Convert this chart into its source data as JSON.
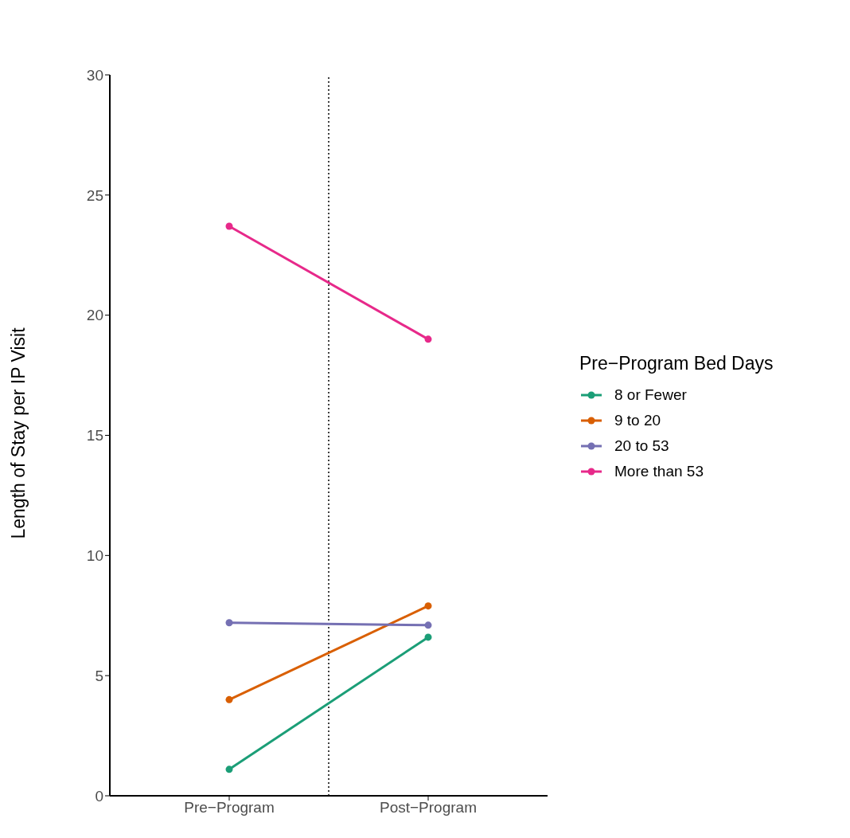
{
  "chart_data": {
    "type": "line",
    "ylabel": "Length of Stay per IP Visit",
    "legend_title": "Pre−Program Bed Days",
    "categories": [
      "Pre−Program",
      "Post−Program"
    ],
    "series": [
      {
        "name": "8 or Fewer",
        "color": "#1b9e77",
        "values": [
          1.1,
          6.6
        ]
      },
      {
        "name": "9 to 20",
        "color": "#d95f02",
        "values": [
          4.0,
          7.9
        ]
      },
      {
        "name": "20 to 53",
        "color": "#7570b3",
        "values": [
          7.2,
          7.1
        ]
      },
      {
        "name": "More than 53",
        "color": "#e7298a",
        "values": [
          23.7,
          19.0
        ]
      }
    ],
    "ylim": [
      0,
      30
    ],
    "yticks": [
      0,
      5,
      10,
      15,
      20,
      25,
      30
    ],
    "legend": "right",
    "marker": "circle",
    "line_style": "solid"
  }
}
